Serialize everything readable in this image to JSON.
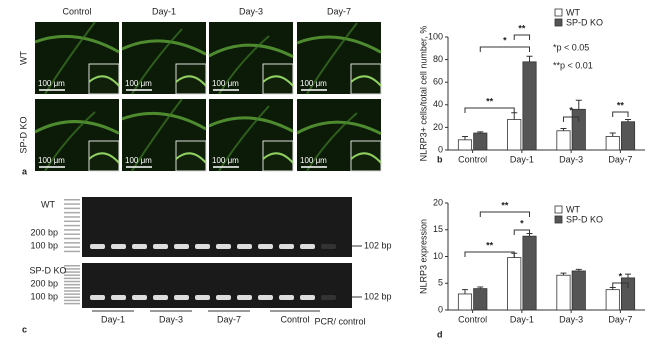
{
  "figure": {
    "panel_labels": [
      "a",
      "b",
      "c",
      "d"
    ],
    "micrographs": {
      "columns": [
        "Control",
        "Day-1",
        "Day-3",
        "Day-7"
      ],
      "rows": [
        "WT",
        "SP-D KO"
      ],
      "scale_label": "100 μm"
    },
    "gel": {
      "rows": [
        "WT",
        "SP-D KO"
      ],
      "ladder_labels": [
        "200 bp",
        "100 bp"
      ],
      "band_label": "102 bp",
      "lanes": [
        "Day-1",
        "Day-3",
        "Day-7",
        "Control",
        "PCR/ control"
      ]
    }
  },
  "chart_data": [
    {
      "type": "bar",
      "y_label": "NLRP3+ cells/total cell number, %",
      "categories": [
        "Control",
        "Day-1",
        "Day-3",
        "Day-7"
      ],
      "series": [
        {
          "name": "WT",
          "color": "#ffffff",
          "values": [
            9,
            27,
            17,
            12
          ],
          "errors": [
            3,
            6,
            2,
            3
          ]
        },
        {
          "name": "SP-D KO",
          "color": "#555555",
          "values": [
            15,
            78,
            36,
            25
          ],
          "errors": [
            1,
            5,
            8,
            2
          ]
        }
      ],
      "ylim": [
        0,
        100
      ],
      "yticks": [
        0,
        20,
        40,
        60,
        80,
        100
      ],
      "significance": [
        "**",
        "*",
        "**",
        "*",
        "**"
      ],
      "notes": [
        "*p < 0.05",
        "**p < 0.01"
      ]
    },
    {
      "type": "bar",
      "y_label": "NLRP3 expression",
      "categories": [
        "Control",
        "Day-1",
        "Day-3",
        "Day-7"
      ],
      "series": [
        {
          "name": "WT",
          "color": "#ffffff",
          "values": [
            3,
            9.8,
            6.5,
            3.8
          ],
          "errors": [
            0.8,
            0.8,
            0.4,
            0.4
          ]
        },
        {
          "name": "SP-D KO",
          "color": "#555555",
          "values": [
            4,
            13.8,
            7.3,
            6
          ],
          "errors": [
            0.3,
            0.5,
            0.3,
            0.7
          ]
        }
      ],
      "ylim": [
        0,
        20
      ],
      "yticks": [
        0,
        5,
        10,
        15,
        20
      ],
      "significance": [
        "**",
        "*",
        "**",
        "*"
      ]
    }
  ]
}
